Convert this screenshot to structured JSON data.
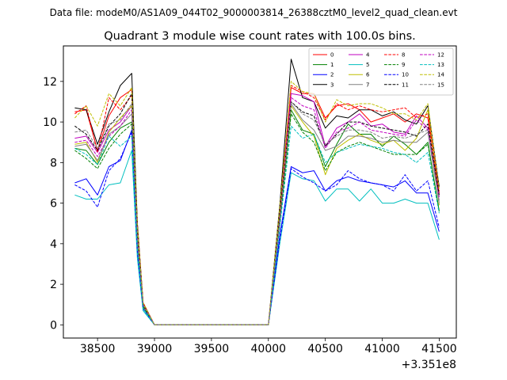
{
  "chart_data": {
    "type": "line",
    "suptitle": "Data file: modeM0/AS1A09_044T02_9000003814_26388cztM0_level2_quad_clean.evt",
    "title": "Quadrant 3 module wise count rates with 100.0s bins.",
    "xlabel": "",
    "ylabel": "",
    "x_offset_label": "+3.351e8",
    "xlim": [
      38200,
      41650
    ],
    "ylim": [
      -0.65,
      13.75
    ],
    "xticks": [
      "38500",
      "39000",
      "39500",
      "40000",
      "40500",
      "41000",
      "41500"
    ],
    "yticks": [
      "0",
      "2",
      "4",
      "6",
      "8",
      "10",
      "12"
    ],
    "grid": false,
    "legend_placement": "top-right",
    "x": [
      38300,
      38400,
      38500,
      38600,
      38700,
      38800,
      38850,
      38900,
      39000,
      39100,
      39200,
      39300,
      39400,
      39500,
      39600,
      39700,
      39800,
      39900,
      40000,
      40100,
      40200,
      40300,
      40400,
      40500,
      40600,
      40700,
      40800,
      40900,
      41000,
      41100,
      41200,
      41300,
      41400,
      41500
    ],
    "series": [
      {
        "name": "0",
        "color": "#ff0000",
        "dash": false,
        "values": [
          10.5,
          10.6,
          8.6,
          10.3,
          11.2,
          11.6,
          5.0,
          1.1,
          0,
          0,
          0,
          0,
          0,
          0,
          0,
          0,
          0,
          0,
          0,
          5.5,
          11.7,
          11.4,
          11.4,
          10.2,
          10.8,
          10.9,
          10.6,
          10.0,
          10.2,
          10.4,
          10.0,
          10.4,
          10.2,
          6.5
        ]
      },
      {
        "name": "1",
        "color": "#008000",
        "dash": false,
        "values": [
          8.7,
          8.6,
          7.9,
          9.0,
          9.7,
          10.0,
          4.0,
          0.9,
          0,
          0,
          0,
          0,
          0,
          0,
          0,
          0,
          0,
          0,
          0,
          5.0,
          10.6,
          9.6,
          9.4,
          7.8,
          8.9,
          9.9,
          9.4,
          9.4,
          8.8,
          9.3,
          8.9,
          8.4,
          9.0,
          5.6
        ]
      },
      {
        "name": "2",
        "color": "#0000ff",
        "dash": false,
        "values": [
          7.0,
          7.2,
          6.4,
          7.8,
          8.1,
          9.6,
          3.6,
          0.8,
          0,
          0,
          0,
          0,
          0,
          0,
          0,
          0,
          0,
          0,
          0,
          4.4,
          7.8,
          7.5,
          7.6,
          6.6,
          7.1,
          7.3,
          7.1,
          7.0,
          6.9,
          6.8,
          7.1,
          6.5,
          6.5,
          4.6
        ]
      },
      {
        "name": "3",
        "color": "#000000",
        "dash": false,
        "values": [
          10.7,
          10.6,
          8.9,
          10.5,
          11.8,
          12.4,
          5.0,
          1.1,
          0,
          0,
          0,
          0,
          0,
          0,
          0,
          0,
          0,
          0,
          0,
          5.9,
          13.1,
          11.2,
          11.0,
          9.7,
          10.3,
          10.2,
          10.6,
          10.6,
          10.3,
          10.5,
          10.1,
          9.9,
          10.8,
          6.8
        ]
      },
      {
        "name": "4",
        "color": "#c000c0",
        "dash": false,
        "values": [
          9.2,
          9.3,
          8.5,
          9.6,
          10.0,
          10.8,
          4.3,
          1.0,
          0,
          0,
          0,
          0,
          0,
          0,
          0,
          0,
          0,
          0,
          0,
          5.3,
          11.4,
          11.3,
          11.0,
          8.8,
          9.7,
          10.0,
          10.4,
          9.8,
          9.9,
          9.5,
          9.4,
          10.3,
          9.7,
          6.3
        ]
      },
      {
        "name": "5",
        "color": "#00bfbf",
        "dash": false,
        "values": [
          6.4,
          6.2,
          6.2,
          6.9,
          7.0,
          8.6,
          3.3,
          0.7,
          0,
          0,
          0,
          0,
          0,
          0,
          0,
          0,
          0,
          0,
          0,
          4.0,
          7.5,
          7.2,
          7.1,
          6.1,
          6.7,
          6.7,
          6.1,
          6.7,
          6.0,
          6.0,
          6.2,
          6.0,
          6.0,
          4.2
        ]
      },
      {
        "name": "6",
        "color": "#bfbf00",
        "dash": false,
        "values": [
          8.9,
          9.0,
          8.0,
          9.5,
          10.2,
          10.8,
          4.2,
          1.0,
          0,
          0,
          0,
          0,
          0,
          0,
          0,
          0,
          0,
          0,
          0,
          5.1,
          10.8,
          10.0,
          9.3,
          7.4,
          8.7,
          9.1,
          9.4,
          9.1,
          8.9,
          9.1,
          8.6,
          9.2,
          10.6,
          5.9
        ]
      },
      {
        "name": "7",
        "color": "#808080",
        "dash": false,
        "values": [
          8.8,
          8.9,
          8.1,
          9.4,
          9.8,
          10.4,
          4.1,
          0.9,
          0,
          0,
          0,
          0,
          0,
          0,
          0,
          0,
          0,
          0,
          0,
          5.0,
          10.9,
          10.1,
          9.6,
          8.6,
          8.8,
          9.3,
          9.3,
          9.2,
          9.0,
          9.1,
          9.0,
          9.0,
          9.5,
          6.0
        ]
      },
      {
        "name": "8",
        "color": "#ff0000",
        "dash": true,
        "values": [
          10.4,
          10.8,
          8.5,
          11.2,
          10.6,
          11.3,
          4.8,
          1.1,
          0,
          0,
          0,
          0,
          0,
          0,
          0,
          0,
          0,
          0,
          0,
          5.6,
          11.8,
          11.5,
          11.2,
          10.1,
          10.9,
          10.6,
          10.8,
          10.6,
          10.5,
          10.6,
          10.7,
          10.2,
          10.4,
          6.6
        ]
      },
      {
        "name": "9",
        "color": "#008000",
        "dash": true,
        "values": [
          8.6,
          8.2,
          7.7,
          8.7,
          9.4,
          9.9,
          3.9,
          0.9,
          0,
          0,
          0,
          0,
          0,
          0,
          0,
          0,
          0,
          0,
          0,
          4.9,
          10.4,
          9.5,
          9.0,
          7.6,
          8.5,
          8.8,
          9.0,
          8.8,
          8.6,
          8.4,
          8.4,
          8.4,
          8.9,
          5.6
        ]
      },
      {
        "name": "10",
        "color": "#0000ff",
        "dash": true,
        "values": [
          6.9,
          6.6,
          5.8,
          7.6,
          8.2,
          9.5,
          3.6,
          0.8,
          0,
          0,
          0,
          0,
          0,
          0,
          0,
          0,
          0,
          0,
          0,
          4.2,
          7.7,
          7.3,
          7.0,
          6.6,
          6.9,
          7.6,
          7.2,
          7.0,
          6.9,
          6.6,
          7.4,
          6.6,
          7.1,
          4.8
        ]
      },
      {
        "name": "11",
        "color": "#000000",
        "dash": true,
        "values": [
          9.8,
          9.4,
          8.6,
          9.8,
          10.4,
          11.4,
          4.6,
          1.0,
          0,
          0,
          0,
          0,
          0,
          0,
          0,
          0,
          0,
          0,
          0,
          5.5,
          11.0,
          10.5,
          10.3,
          8.8,
          9.4,
          10.0,
          10.0,
          9.8,
          9.7,
          9.6,
          9.5,
          9.3,
          9.9,
          6.4
        ]
      },
      {
        "name": "12",
        "color": "#c000c0",
        "dash": true,
        "values": [
          9.0,
          9.1,
          8.3,
          9.3,
          9.8,
          10.6,
          4.2,
          1.0,
          0,
          0,
          0,
          0,
          0,
          0,
          0,
          0,
          0,
          0,
          0,
          5.2,
          11.2,
          10.8,
          10.6,
          8.7,
          9.5,
          9.7,
          10.0,
          9.6,
          9.5,
          9.4,
          9.3,
          10.1,
          9.6,
          6.2
        ]
      },
      {
        "name": "13",
        "color": "#00bfbf",
        "dash": true,
        "values": [
          8.7,
          8.4,
          7.9,
          9.3,
          8.8,
          9.3,
          3.8,
          0.8,
          0,
          0,
          0,
          0,
          0,
          0,
          0,
          0,
          0,
          0,
          0,
          4.8,
          9.8,
          9.2,
          9.4,
          8.0,
          8.5,
          8.7,
          8.9,
          8.8,
          8.7,
          8.5,
          8.4,
          8.0,
          8.5,
          5.5
        ]
      },
      {
        "name": "14",
        "color": "#bfbf00",
        "dash": true,
        "values": [
          10.2,
          10.8,
          9.8,
          11.4,
          10.8,
          11.7,
          4.9,
          1.1,
          0,
          0,
          0,
          0,
          0,
          0,
          0,
          0,
          0,
          0,
          0,
          5.8,
          12.0,
          11.5,
          11.4,
          10.0,
          11.1,
          10.8,
          10.9,
          10.9,
          10.7,
          10.4,
          10.4,
          10.1,
          10.9,
          6.7
        ]
      },
      {
        "name": "15",
        "color": "#808080",
        "dash": true,
        "values": [
          9.5,
          9.6,
          8.7,
          9.9,
          10.1,
          10.9,
          4.4,
          1.0,
          0,
          0,
          0,
          0,
          0,
          0,
          0,
          0,
          0,
          0,
          0,
          5.3,
          11.0,
          10.4,
          10.1,
          8.9,
          9.3,
          9.6,
          9.6,
          9.5,
          9.2,
          9.3,
          9.2,
          9.4,
          9.6,
          6.1
        ]
      }
    ]
  }
}
